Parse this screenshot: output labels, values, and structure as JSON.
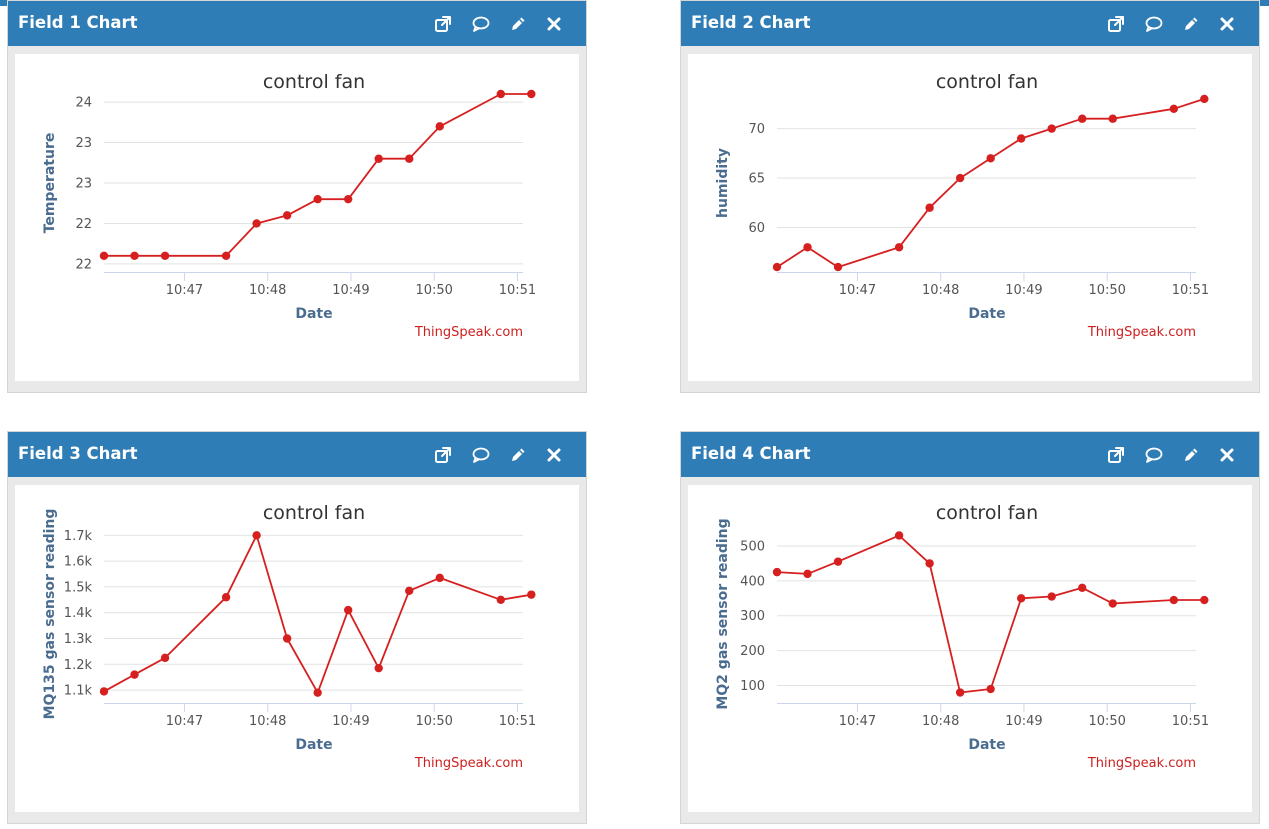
{
  "panels": [
    {
      "header_title": "Field 1 Chart",
      "chart_data": {
        "type": "line",
        "title": "control fan",
        "xlabel": "Date",
        "ylabel": "Temperature",
        "credit": "ThingSpeak.com",
        "series_color": "#d62020",
        "x_ticks": [
          "10:47",
          "10:48",
          "10:49",
          "10:50",
          "10:51"
        ],
        "xlim": [
          "10:46:02",
          "10:51:04"
        ],
        "y_ticks": [
          21.5,
          22,
          22.5,
          23,
          23.5
        ],
        "y_tick_labels": [
          "22",
          "22",
          "23",
          "23",
          "24"
        ],
        "ylim": [
          21.4,
          23.6
        ],
        "grid": true,
        "x": [
          "10:46:02",
          "10:46:24",
          "10:46:46",
          "10:47:30",
          "10:47:52",
          "10:48:14",
          "10:48:36",
          "10:48:58",
          "10:49:20",
          "10:49:42",
          "10:50:04",
          "10:50:48",
          "10:51:10"
        ],
        "y": [
          21.6,
          21.6,
          21.6,
          21.6,
          22.0,
          22.1,
          22.3,
          22.3,
          22.8,
          22.8,
          23.2,
          23.6,
          23.6
        ]
      }
    },
    {
      "header_title": "Field 2 Chart",
      "chart_data": {
        "type": "line",
        "title": "control fan",
        "xlabel": "Date",
        "ylabel": "humidity",
        "credit": "ThingSpeak.com",
        "series_color": "#d62020",
        "x_ticks": [
          "10:47",
          "10:48",
          "10:49",
          "10:50",
          "10:51"
        ],
        "xlim": [
          "10:46:02",
          "10:51:04"
        ],
        "y_ticks": [
          60,
          65,
          70
        ],
        "y_tick_labels": [
          "60",
          "65",
          "70"
        ],
        "ylim": [
          55.5,
          73.5
        ],
        "grid": true,
        "x": [
          "10:46:02",
          "10:46:24",
          "10:46:46",
          "10:47:30",
          "10:47:52",
          "10:48:14",
          "10:48:36",
          "10:48:58",
          "10:49:20",
          "10:49:42",
          "10:50:04",
          "10:50:48",
          "10:51:10"
        ],
        "y": [
          56,
          58,
          56,
          58,
          62,
          65,
          67,
          69,
          70,
          71,
          71,
          72,
          73
        ]
      }
    },
    {
      "header_title": "Field 3 Chart",
      "chart_data": {
        "type": "line",
        "title": "control fan",
        "xlabel": "Date",
        "ylabel": "MQ135 gas sensor reading",
        "credit": "ThingSpeak.com",
        "series_color": "#d62020",
        "x_ticks": [
          "10:47",
          "10:48",
          "10:49",
          "10:50",
          "10:51"
        ],
        "xlim": [
          "10:46:02",
          "10:51:04"
        ],
        "y_ticks": [
          1100,
          1200,
          1300,
          1400,
          1500,
          1600,
          1700
        ],
        "y_tick_labels": [
          "1.1k",
          "1.2k",
          "1.3k",
          "1.4k",
          "1.5k",
          "1.6k",
          "1.7k"
        ],
        "ylim": [
          1050,
          1740
        ],
        "grid": true,
        "x": [
          "10:46:02",
          "10:46:24",
          "10:46:46",
          "10:47:30",
          "10:47:52",
          "10:48:14",
          "10:48:36",
          "10:48:58",
          "10:49:20",
          "10:49:42",
          "10:50:04",
          "10:50:48",
          "10:51:10"
        ],
        "y": [
          1095,
          1160,
          1225,
          1460,
          1700,
          1300,
          1090,
          1410,
          1185,
          1485,
          1535,
          1450,
          1470
        ]
      }
    },
    {
      "header_title": "Field 4 Chart",
      "chart_data": {
        "type": "line",
        "title": "control fan",
        "xlabel": "Date",
        "ylabel": "MQ2 gas sensor reading",
        "credit": "ThingSpeak.com",
        "series_color": "#d62020",
        "x_ticks": [
          "10:47",
          "10:48",
          "10:49",
          "10:50",
          "10:51"
        ],
        "xlim": [
          "10:46:02",
          "10:51:04"
        ],
        "y_ticks": [
          100,
          200,
          300,
          400,
          500
        ],
        "y_tick_labels": [
          "100",
          "200",
          "300",
          "400",
          "500"
        ],
        "ylim": [
          50,
          560
        ],
        "grid": true,
        "x": [
          "10:46:02",
          "10:46:24",
          "10:46:46",
          "10:47:30",
          "10:47:52",
          "10:48:14",
          "10:48:36",
          "10:48:58",
          "10:49:20",
          "10:49:42",
          "10:50:04",
          "10:50:48",
          "10:51:10"
        ],
        "y": [
          425,
          420,
          455,
          530,
          450,
          80,
          90,
          350,
          355,
          380,
          335,
          345,
          345
        ]
      }
    }
  ],
  "header_icons": [
    "external-link-icon",
    "comment-icon",
    "edit-icon",
    "close-icon"
  ],
  "colors": {
    "header": "#2e7db7",
    "series": "#d62020",
    "axis_label": "#4a6c8f",
    "credit": "#cc2020"
  }
}
